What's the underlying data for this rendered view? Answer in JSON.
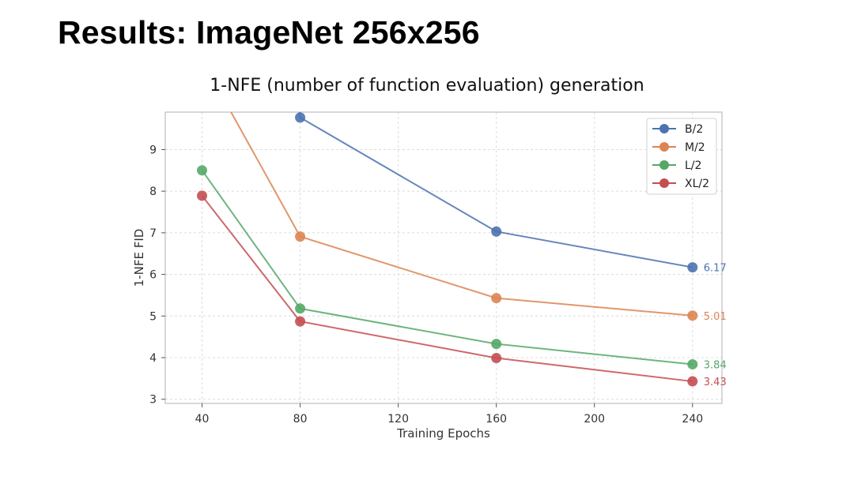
{
  "slide": {
    "title": "Results: ImageNet 256x256"
  },
  "chart_data": {
    "type": "line",
    "title": "1-NFE (number of function evaluation) generation",
    "xlabel": "Training Epochs",
    "ylabel": "1-NFE FID",
    "xlim": [
      25,
      252
    ],
    "ylim": [
      2.9,
      9.9
    ],
    "xticks": [
      40,
      80,
      120,
      160,
      200,
      240
    ],
    "yticks": [
      3,
      4,
      5,
      6,
      7,
      8,
      9
    ],
    "grid": true,
    "legend_position": "top-right",
    "series": [
      {
        "name": "B/2",
        "color": "#4c72b0",
        "x": [
          80,
          160,
          240
        ],
        "y": [
          9.77,
          7.03,
          6.17
        ],
        "end_label": "6.17",
        "lead_in": {
          "x": 79,
          "y": 10.2
        }
      },
      {
        "name": "M/2",
        "color": "#dd8452",
        "x": [
          80,
          160,
          240
        ],
        "y": [
          6.91,
          5.43,
          5.01
        ],
        "end_label": "5.01",
        "lead_in": {
          "x": 49,
          "y": 10.2
        }
      },
      {
        "name": "L/2",
        "color": "#55a868",
        "x": [
          40,
          80,
          160,
          240
        ],
        "y": [
          8.5,
          5.18,
          4.33,
          3.84
        ],
        "end_label": "3.84"
      },
      {
        "name": "XL/2",
        "color": "#c44e52",
        "x": [
          40,
          80,
          160,
          240
        ],
        "y": [
          7.89,
          4.87,
          3.99,
          3.43
        ],
        "end_label": "3.43"
      }
    ]
  }
}
